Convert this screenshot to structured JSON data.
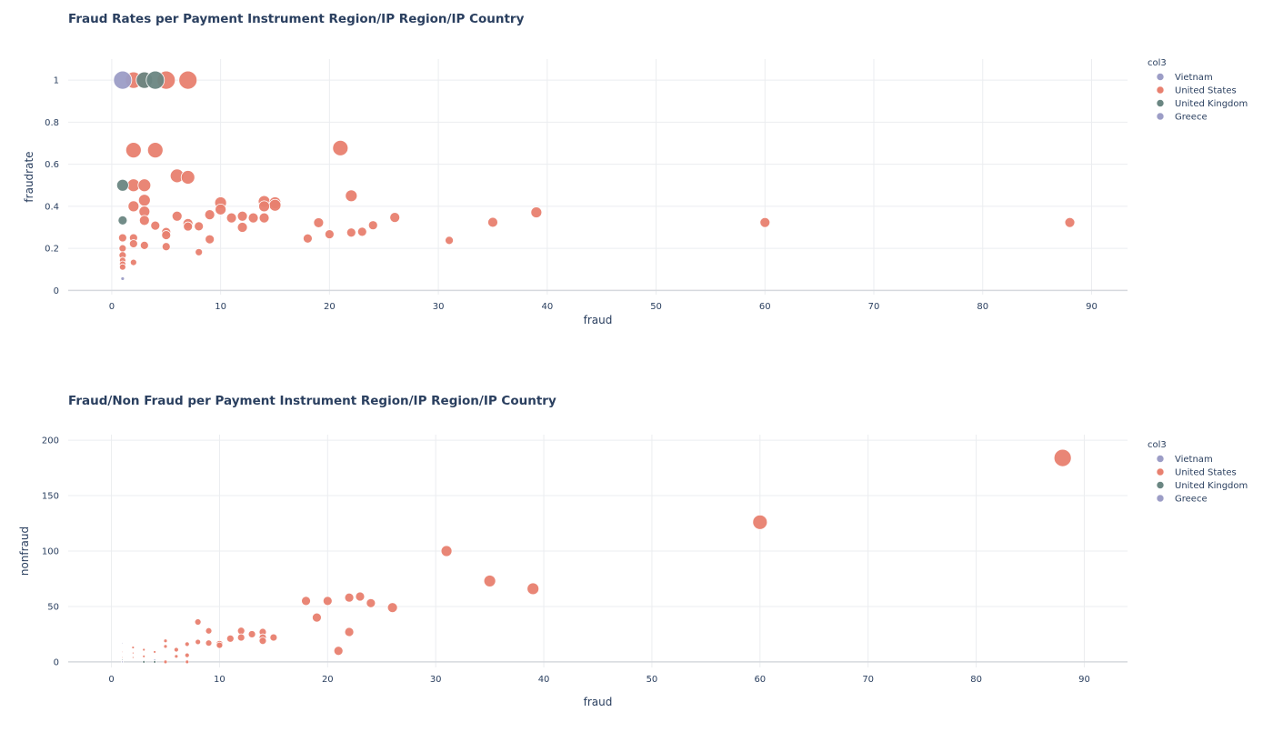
{
  "chart_data": [
    {
      "type": "scatter",
      "title": "Fraud Rates per Payment Instrument Region/IP Region/IP Country",
      "xlabel": "fraud",
      "ylabel": "fraudrate",
      "xlim": [
        -4,
        93.3
      ],
      "ylim": [
        -0.02,
        1.1
      ],
      "xticks": [
        0,
        10,
        20,
        30,
        40,
        50,
        60,
        70,
        80,
        90
      ],
      "yticks": [
        0,
        0.2,
        0.4,
        0.6,
        0.8,
        1
      ],
      "grid": true,
      "legend": {
        "title": "col3",
        "placement": "top-right"
      },
      "series": [
        {
          "name": "Vietnam",
          "color": "#9c9dc6",
          "points": [
            [
              1,
              1,
              20
            ]
          ]
        },
        {
          "name": "United States",
          "color": "#e8806f",
          "points": [
            [
              2,
              1,
              18
            ],
            [
              5,
              1,
              20
            ],
            [
              7,
              1,
              20
            ],
            [
              3,
              1,
              18
            ],
            [
              2,
              0.667,
              17
            ],
            [
              4,
              0.667,
              17
            ],
            [
              21,
              0.677,
              17
            ],
            [
              6,
              0.545,
              15
            ],
            [
              7,
              0.538,
              15
            ],
            [
              2,
              0.5,
              14
            ],
            [
              3,
              0.5,
              14
            ],
            [
              22,
              0.45,
              13
            ],
            [
              3,
              0.429,
              13
            ],
            [
              14,
              0.423,
              13
            ],
            [
              10,
              0.417,
              13
            ],
            [
              15,
              0.417,
              13
            ],
            [
              15,
              0.405,
              13
            ],
            [
              2,
              0.4,
              12
            ],
            [
              14,
              0.4,
              12
            ],
            [
              10,
              0.385,
              12
            ],
            [
              3,
              0.375,
              12
            ],
            [
              39,
              0.371,
              12
            ],
            [
              9,
              0.36,
              11
            ],
            [
              6,
              0.353,
              11
            ],
            [
              12,
              0.353,
              11
            ],
            [
              11,
              0.345,
              11
            ],
            [
              13,
              0.345,
              11
            ],
            [
              14,
              0.345,
              11
            ],
            [
              26,
              0.347,
              11
            ],
            [
              3,
              0.333,
              11
            ],
            [
              35,
              0.324,
              11
            ],
            [
              60,
              0.323,
              11
            ],
            [
              88,
              0.323,
              11
            ],
            [
              19,
              0.322,
              11
            ],
            [
              7,
              0.318,
              11
            ],
            [
              24,
              0.31,
              10
            ],
            [
              4,
              0.308,
              10
            ],
            [
              8,
              0.305,
              10
            ],
            [
              7,
              0.304,
              10
            ],
            [
              12,
              0.3,
              11
            ],
            [
              23,
              0.279,
              10
            ],
            [
              5,
              0.278,
              10
            ],
            [
              22,
              0.275,
              10
            ],
            [
              20,
              0.267,
              10
            ],
            [
              5,
              0.263,
              10
            ],
            [
              1,
              0.25,
              9
            ],
            [
              2,
              0.25,
              9
            ],
            [
              18,
              0.247,
              10
            ],
            [
              9,
              0.243,
              10
            ],
            [
              31,
              0.238,
              9
            ],
            [
              2,
              0.222,
              9
            ],
            [
              3,
              0.214,
              9
            ],
            [
              5,
              0.208,
              9
            ],
            [
              1,
              0.2,
              8
            ],
            [
              8,
              0.182,
              8
            ],
            [
              1,
              0.167,
              8
            ],
            [
              1,
              0.143,
              7
            ],
            [
              2,
              0.133,
              7
            ],
            [
              1,
              0.125,
              7
            ],
            [
              1,
              0.111,
              7
            ]
          ]
        },
        {
          "name": "United Kingdom",
          "color": "#6a8682",
          "points": [
            [
              3,
              1,
              18
            ],
            [
              4,
              1,
              20
            ],
            [
              1,
              0.5,
              13
            ],
            [
              1,
              0.333,
              10
            ]
          ]
        },
        {
          "name": "Greece",
          "color": "#9c9dc6",
          "points": [
            [
              1,
              0.056,
              4
            ]
          ]
        }
      ]
    },
    {
      "type": "scatter",
      "title": "Fraud/Non Fraud per Payment Instrument Region/IP Region/IP Country",
      "xlabel": "fraud",
      "ylabel": "nonfraud",
      "xlim": [
        -4,
        94
      ],
      "ylim": [
        -5,
        205
      ],
      "xticks": [
        0,
        10,
        20,
        30,
        40,
        50,
        60,
        70,
        80,
        90
      ],
      "yticks": [
        0,
        50,
        100,
        150,
        200
      ],
      "grid": true,
      "legend": {
        "title": "col3",
        "placement": "top-right"
      },
      "series": [
        {
          "name": "Vietnam",
          "color": "#9c9dc6",
          "points": [
            [
              1,
              0,
              2
            ]
          ]
        },
        {
          "name": "United States",
          "color": "#e8806f",
          "points": [
            [
              88,
              184,
              19
            ],
            [
              60,
              126,
              16
            ],
            [
              31,
              100,
              12
            ],
            [
              35,
              73,
              13
            ],
            [
              39,
              66,
              13
            ],
            [
              18,
              55,
              10
            ],
            [
              20,
              55,
              10
            ],
            [
              22,
              58,
              10
            ],
            [
              23,
              59,
              10
            ],
            [
              24,
              53,
              10
            ],
            [
              26,
              49,
              11
            ],
            [
              19,
              40,
              10
            ],
            [
              22,
              27,
              10
            ],
            [
              21,
              10,
              10
            ],
            [
              8,
              36,
              7
            ],
            [
              9,
              28,
              7
            ],
            [
              12,
              28,
              8
            ],
            [
              14,
              27,
              8
            ],
            [
              13,
              25,
              8
            ],
            [
              11,
              21,
              8
            ],
            [
              12,
              22,
              8
            ],
            [
              14,
              22,
              8
            ],
            [
              15,
              22,
              8
            ],
            [
              14,
              19,
              8
            ],
            [
              10,
              16,
              8
            ],
            [
              10,
              15,
              7
            ],
            [
              9,
              17,
              7
            ],
            [
              8,
              18,
              6
            ],
            [
              7,
              16,
              5
            ],
            [
              6,
              11,
              5
            ],
            [
              7,
              6,
              5
            ],
            [
              5,
              19,
              4
            ],
            [
              5,
              14,
              4
            ],
            [
              6,
              5,
              4
            ],
            [
              4,
              9,
              3
            ],
            [
              3,
              11,
              3
            ],
            [
              3,
              5,
              3
            ],
            [
              2,
              13,
              3
            ],
            [
              2,
              8,
              2
            ],
            [
              2,
              4,
              2
            ],
            [
              5,
              0,
              4
            ],
            [
              7,
              0,
              4
            ],
            [
              1,
              17,
              1.5
            ],
            [
              1,
              9,
              1.5
            ],
            [
              1,
              4,
              1.5
            ],
            [
              1,
              1,
              1.5
            ]
          ]
        },
        {
          "name": "United Kingdom",
          "color": "#6a8682",
          "points": [
            [
              3,
              0,
              3
            ],
            [
              4,
              0,
              3
            ],
            [
              1,
              1,
              1.5
            ],
            [
              1,
              2,
              1.5
            ]
          ]
        },
        {
          "name": "Greece",
          "color": "#9c9dc6",
          "points": [
            [
              1,
              17,
              1.5
            ],
            [
              4,
              2,
              2
            ]
          ]
        }
      ]
    }
  ]
}
